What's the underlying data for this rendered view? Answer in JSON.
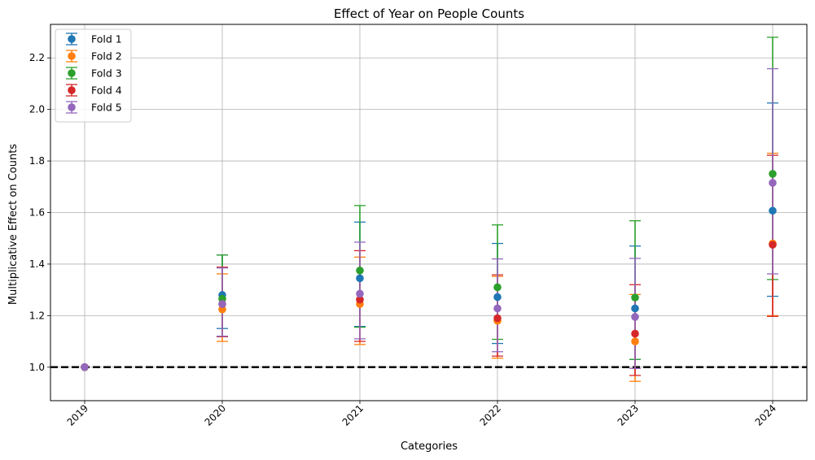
{
  "chart_data": {
    "type": "scatter",
    "title": "Effect of Year on People Counts",
    "xlabel": "Categories",
    "ylabel": "Multiplicative Effect on Counts",
    "categories": [
      "2019",
      "2020",
      "2021",
      "2022",
      "2023",
      "2024"
    ],
    "ylim": [
      0.87,
      2.33
    ],
    "yticks": [
      "1.0",
      "1.2",
      "1.4",
      "1.6",
      "1.8",
      "2.0",
      "2.2"
    ],
    "reference_line": 1.0,
    "grid": true,
    "legend_position": "upper left",
    "series": [
      {
        "name": "Fold 1",
        "color": "#1f77b4",
        "values": [
          1.0,
          1.28,
          1.345,
          1.272,
          1.228,
          1.607
        ],
        "lower": [
          1.0,
          1.15,
          1.158,
          1.092,
          1.03,
          1.275
        ],
        "upper": [
          1.0,
          1.435,
          1.563,
          1.48,
          1.47,
          2.025
        ]
      },
      {
        "name": "Fold 2",
        "color": "#ff7f0e",
        "values": [
          1.0,
          1.224,
          1.245,
          1.18,
          1.1,
          1.48
        ],
        "lower": [
          1.0,
          1.1,
          1.088,
          1.035,
          0.945,
          1.2
        ],
        "upper": [
          1.0,
          1.362,
          1.427,
          1.352,
          1.282,
          1.83
        ]
      },
      {
        "name": "Fold 3",
        "color": "#2ca02c",
        "values": [
          1.0,
          1.265,
          1.375,
          1.31,
          1.27,
          1.75
        ],
        "lower": [
          1.0,
          1.12,
          1.155,
          1.108,
          1.03,
          1.34
        ],
        "upper": [
          1.0,
          1.435,
          1.627,
          1.552,
          1.568,
          2.28
        ]
      },
      {
        "name": "Fold 4",
        "color": "#d62728",
        "values": [
          1.0,
          1.245,
          1.262,
          1.19,
          1.13,
          1.475
        ],
        "lower": [
          1.0,
          1.118,
          1.1,
          1.043,
          0.968,
          1.197
        ],
        "upper": [
          1.0,
          1.388,
          1.452,
          1.358,
          1.32,
          1.822
        ]
      },
      {
        "name": "Fold 5",
        "color": "#9467bd",
        "values": [
          1.0,
          1.245,
          1.285,
          1.228,
          1.195,
          1.715
        ],
        "lower": [
          1.0,
          1.12,
          1.11,
          1.06,
          0.995,
          1.362
        ],
        "upper": [
          1.0,
          1.385,
          1.485,
          1.42,
          1.422,
          2.158
        ]
      }
    ]
  }
}
